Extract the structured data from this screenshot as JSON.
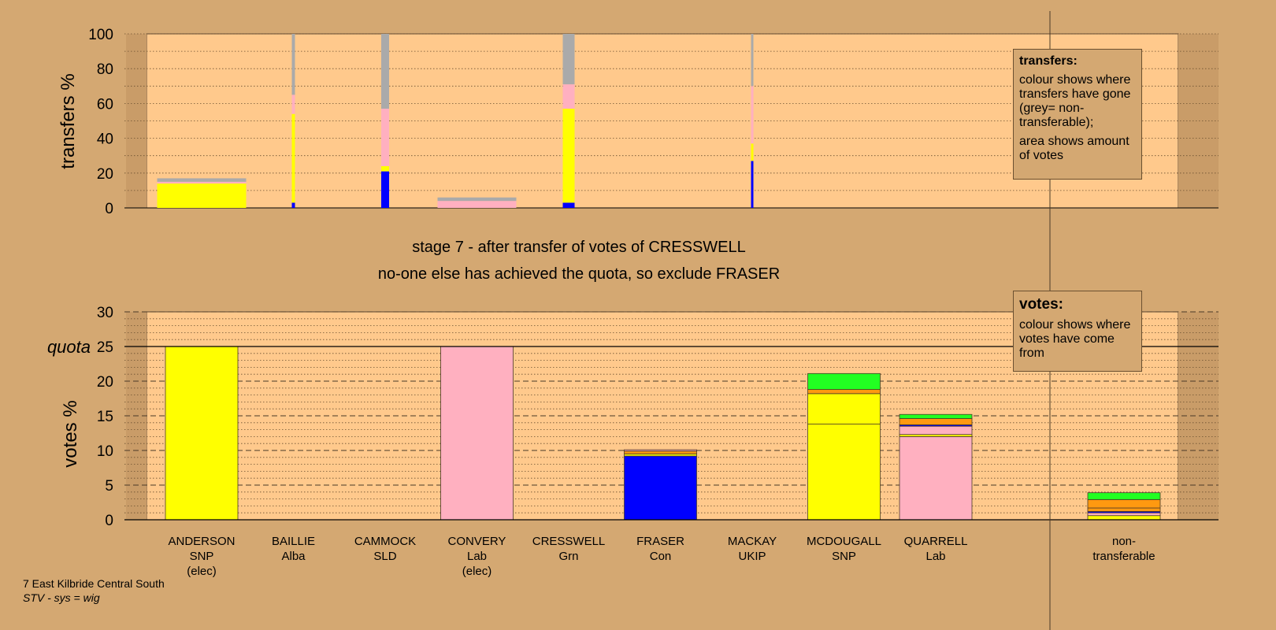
{
  "stage_line1": "stage 7 - after transfer of votes of CRESSWELL",
  "stage_line2": "no-one else has achieved the quota, so exclude FRASER",
  "footer": {
    "line1": "7 East Kilbride Central South",
    "line2": "STV - sys = wig"
  },
  "legend_transfers": {
    "title": "transfers:",
    "text1": "colour shows where transfers have gone (grey= non-transferable);",
    "text2": "area shows amount of votes"
  },
  "legend_votes": {
    "title": "votes:",
    "text1": "colour shows where votes have come from"
  },
  "colors": {
    "background": "#d4a872",
    "plot": "#ffc98c",
    "SNP": "#ffff00",
    "Lab": "#ffb0c0",
    "Con": "#0000ff",
    "Grn": "#22ff22",
    "Orange": "#ff9910",
    "NT": "#aaaaaa"
  },
  "chart_data": [
    {
      "type": "bar",
      "ylabel": "transfers %",
      "ylim": [
        0,
        100
      ],
      "yticks": [
        "0",
        "20",
        "40",
        "60",
        "80",
        "100"
      ],
      "bars": [
        {
          "x": 0,
          "width_share": 17,
          "segments": [
            {
              "party": "SNP",
              "value": 14
            },
            {
              "party": "Lab",
              "value": 1
            },
            {
              "party": "NT",
              "value": 2
            }
          ]
        },
        {
          "x": 1,
          "width_share": 0.5,
          "segments": [
            {
              "party": "Con",
              "value": 3
            },
            {
              "party": "SNP",
              "value": 51
            },
            {
              "party": "Lab",
              "value": 11
            },
            {
              "party": "NT",
              "value": 35
            }
          ]
        },
        {
          "x": 2,
          "width_share": 1.2,
          "segments": [
            {
              "party": "Con",
              "value": 21
            },
            {
              "party": "SNP",
              "value": 3
            },
            {
              "party": "Lab",
              "value": 33
            },
            {
              "party": "NT",
              "value": 43
            }
          ]
        },
        {
          "x": 3,
          "width_share": 15,
          "segments": [
            {
              "party": "Lab",
              "value": 4
            },
            {
              "party": "NT",
              "value": 2
            }
          ]
        },
        {
          "x": 4,
          "width_share": 2,
          "segments": [
            {
              "party": "Con",
              "value": 3
            },
            {
              "party": "SNP",
              "value": 54
            },
            {
              "party": "Lab",
              "value": 14
            },
            {
              "party": "NT",
              "value": 29
            }
          ]
        },
        {
          "x": 6,
          "width_share": 0.4,
          "segments": [
            {
              "party": "Con",
              "value": 27
            },
            {
              "party": "SNP",
              "value": 10
            },
            {
              "party": "Lab",
              "value": 33
            },
            {
              "party": "NT",
              "value": 30
            }
          ]
        }
      ]
    },
    {
      "type": "bar",
      "ylabel": "votes %",
      "ylim": [
        0,
        30
      ],
      "yticks": [
        "0",
        "5",
        "10",
        "15",
        "20",
        "25",
        "30"
      ],
      "quota_label": "quota",
      "quota": 25,
      "candidates": [
        {
          "name": "ANDERSON",
          "party": "SNP",
          "note": "(elec)"
        },
        {
          "name": "BAILLIE",
          "party": "Alba",
          "note": ""
        },
        {
          "name": "CAMMOCK",
          "party": "SLD",
          "note": ""
        },
        {
          "name": "CONVERY",
          "party": "Lab",
          "note": "(elec)"
        },
        {
          "name": "CRESSWELL",
          "party": "Grn",
          "note": ""
        },
        {
          "name": "FRASER",
          "party": "Con",
          "note": ""
        },
        {
          "name": "MACKAY",
          "party": "UKIP",
          "note": ""
        },
        {
          "name": "MCDOUGALL",
          "party": "SNP",
          "note": ""
        },
        {
          "name": "QUARRELL",
          "party": "Lab",
          "note": ""
        }
      ],
      "nontransferable_label": {
        "line1": "non-",
        "line2": "transferable"
      },
      "bars": [
        {
          "x": 0,
          "segments": [
            {
              "party": "SNP",
              "value": 25
            }
          ]
        },
        {
          "x": 3,
          "segments": [
            {
              "party": "Lab",
              "value": 25
            }
          ]
        },
        {
          "x": 5,
          "segments": [
            {
              "party": "Con",
              "value": 9.2
            },
            {
              "party": "SNP",
              "value": 0.3
            },
            {
              "party": "Orange",
              "value": 0.4
            },
            {
              "party": "Lab",
              "value": 0.2
            }
          ]
        },
        {
          "x": 7,
          "segments": [
            {
              "party": "SNP",
              "value": 13.8
            },
            {
              "party": "SNP",
              "value": 4.4
            },
            {
              "party": "Orange",
              "value": 0.6
            },
            {
              "party": "Grn",
              "value": 2.3
            }
          ]
        },
        {
          "x": 8,
          "segments": [
            {
              "party": "Lab",
              "value": 12
            },
            {
              "party": "SNP",
              "value": 0.3
            },
            {
              "party": "Lab",
              "value": 1.2
            },
            {
              "party": "Con",
              "value": 0.2
            },
            {
              "party": "Orange",
              "value": 0.9
            },
            {
              "party": "Grn",
              "value": 0.6
            }
          ]
        },
        {
          "x": 10,
          "segments": [
            {
              "party": "SNP",
              "value": 0.6
            },
            {
              "party": "Lab",
              "value": 0.4
            },
            {
              "party": "Con",
              "value": 0.2
            },
            {
              "party": "Orange",
              "value": 0.5
            },
            {
              "party": "Orange",
              "value": 1.2
            },
            {
              "party": "Grn",
              "value": 1
            }
          ]
        }
      ]
    }
  ]
}
